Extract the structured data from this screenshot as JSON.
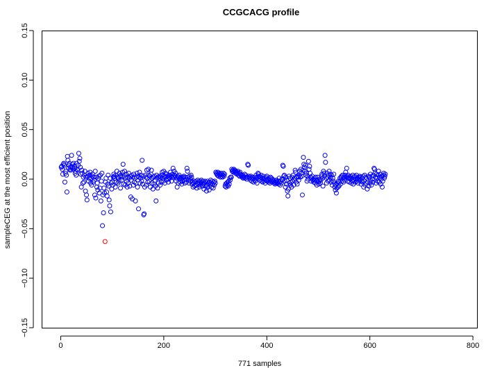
{
  "chart_data": {
    "type": "scatter",
    "title": "CCGCACG profile",
    "xlabel": "771 samples",
    "ylabel": "sampleCEG at the most efficient position",
    "xlim": [
      -37,
      808
    ],
    "ylim": [
      -0.15,
      0.15
    ],
    "x_ticks": [
      0,
      200,
      400,
      600,
      800
    ],
    "x_tick_labels": [
      "0",
      "200",
      "400",
      "600",
      "800"
    ],
    "y_ticks": [
      -0.15,
      -0.1,
      -0.05,
      0.0,
      0.05,
      0.1,
      0.15
    ],
    "y_tick_labels": [
      "−0.15",
      "−0.10",
      "−0.05",
      "0.00",
      "0.05",
      "0.10",
      "0.15"
    ],
    "marker": "open-circle",
    "colors": {
      "normal": "#0000ff",
      "highlight": "#ff0000"
    },
    "series": [
      {
        "values": [
          0.012,
          0.013,
          0.01,
          0.005,
          0.015,
          0.016,
          0.014,
          -0.003,
          0.006,
          0.008,
          0.004,
          -0.013,
          0.023,
          0.019,
          0.011,
          0.014,
          0.016,
          0.01,
          0.009,
          0.012,
          0.024,
          0.015,
          0.012,
          0.01,
          0.016,
          0.013,
          0.011,
          0.006,
          0.008,
          0.004,
          0.016,
          0.01,
          0.009,
          0.014,
          0.026,
          0.018,
          0.021,
          0.012,
          0.005,
          -0.008,
          0.009,
          0.006,
          -0.004,
          0.002,
          -0.003,
          0.004,
          0.008,
          -0.012,
          0.002,
          -0.016,
          -0.021,
          0.003,
          0.006,
          -0.002,
          0.001,
          0.004,
          0.007,
          -0.004,
          0.001,
          -0.006,
          0.003,
          0.005,
          -0.003,
          0.002,
          -0.001,
          -0.016,
          0.008,
          -0.019,
          0.002,
          -0.008,
          -0.004,
          -0.011,
          0.001,
          0.003,
          -0.014,
          -0.009,
          0.004,
          -0.022,
          -0.002,
          0.006,
          -0.047,
          -0.016,
          -0.034,
          -0.009,
          -0.014,
          -0.063,
          -0.003,
          0.001,
          -0.013,
          -0.017,
          -0.005,
          0.004,
          -0.007,
          -0.021,
          -0.027,
          0.001,
          -0.033,
          -0.004,
          -0.01,
          -0.003,
          -0.006,
          0.002,
          0.005,
          0.003,
          0.001,
          -0.008,
          0.004,
          -0.003,
          0.008,
          0.002,
          -0.004,
          0.001,
          -0.002,
          0.006,
          0.003,
          -0.009,
          0.004,
          -0.001,
          0.002,
          0.007,
          0.015,
          -0.005,
          0.003,
          0.008,
          -0.006,
          0.001,
          0.005,
          -0.002,
          -0.008,
          0.002,
          -0.004,
          0.006,
          0.001,
          -0.007,
          0.003,
          -0.018,
          -0.001,
          0.004,
          -0.02,
          0.002,
          -0.006,
          0.005,
          -0.003,
          0.001,
          -0.022,
          -0.004,
          0.002,
          0.006,
          -0.008,
          0.003,
          -0.03,
          0.002,
          0.007,
          -0.004,
          0.001,
          0.004,
          -0.002,
          0.019,
          -0.005,
          0.003,
          -0.036,
          -0.035,
          -0.008,
          0.004,
          0.002,
          -0.006,
          0.009,
          0.001,
          -0.003,
          0.01,
          0.004,
          -0.002,
          0.003,
          -0.008,
          0.005,
          0.009,
          -0.004,
          0.001,
          -0.01,
          0.002,
          -0.005,
          0.003,
          -0.001,
          -0.007,
          -0.022,
          0.004,
          0.001,
          -0.009,
          0.002,
          -0.004,
          0.003,
          0.001,
          -0.006,
          0.002,
          -0.003,
          0.004,
          0.007,
          0.001,
          -0.002,
          0.008,
          0.003,
          -0.004,
          0.006,
          0.002,
          -0.001,
          0.005,
          0.003,
          0.0,
          -0.003,
          0.002,
          0.004,
          0.001,
          0.007,
          0.003,
          -0.002,
          0.002,
          0.005,
          0.011,
          0.002,
          0.008,
          0.004,
          0.003,
          0.006,
          -0.002,
          0.001,
          -0.008,
          0.003,
          -0.004,
          0.002,
          0.004,
          0.001,
          -0.003,
          0.002,
          0.0,
          -0.005,
          -0.002,
          0.001,
          0.002,
          0.003,
          -0.001,
          -0.004,
          0.002,
          0.0,
          -0.003,
          0.011,
          0.008,
          0.002,
          -0.001,
          -0.004,
          0.003,
          0.001,
          -0.002,
          0.004,
          0.002,
          -0.005,
          -0.003,
          -0.008,
          -0.004,
          -0.002,
          -0.007,
          -0.003,
          -0.006,
          -0.002,
          -0.009,
          -0.004,
          -0.001,
          -0.005,
          -0.003,
          -0.008,
          -0.002,
          -0.006,
          -0.004,
          -0.001,
          -0.003,
          -0.007,
          -0.002,
          -0.005,
          -0.01,
          -0.004,
          -0.002,
          -0.007,
          -0.003,
          -0.012,
          -0.006,
          -0.002,
          -0.008,
          -0.004,
          -0.011,
          -0.003,
          -0.006,
          -0.001,
          -0.004,
          -0.008,
          -0.002,
          -0.005,
          -0.009,
          -0.003,
          -0.006,
          -0.002,
          -0.004,
          0.007,
          0.006,
          0.005,
          0.004,
          0.007,
          0.003,
          0.006,
          0.005,
          0.004,
          0.002,
          0.006,
          0.003,
          0.005,
          0.002,
          0.004,
          0.006,
          0.003,
          0.005,
          -0.007,
          -0.005,
          -0.008,
          -0.004,
          -0.006,
          -0.003,
          -0.007,
          -0.002,
          -0.005,
          0.001,
          -0.001,
          0.002,
          0.002,
          0.01,
          0.008,
          0.009,
          0.007,
          0.01,
          0.008,
          0.009,
          0.006,
          0.008,
          0.007,
          0.005,
          0.006,
          0.008,
          0.004,
          0.006,
          0.003,
          0.007,
          0.005,
          0.004,
          0.003,
          0.002,
          0.004,
          0.001,
          0.003,
          0.002,
          0.005,
          0.001,
          0.004,
          0.002,
          0.0,
          0.002,
          0.015,
          0.014,
          0.003,
          0.001,
          0.002,
          -0.001,
          0.003,
          0.001,
          -0.002,
          0.002,
          0.0,
          -0.003,
          0.001,
          -0.001,
          0.002,
          -0.002,
          0.004,
          0.001,
          -0.004,
          0.002,
          0.006,
          0.005,
          0.003,
          0.001,
          -0.001,
          0.002,
          0.004,
          -0.002,
          0.001,
          -0.003,
          0.003,
          0.0,
          -0.002,
          0.001,
          -0.004,
          0.002,
          -0.001,
          0.003,
          -0.002,
          0.0,
          -0.003,
          0.001,
          -0.001,
          -0.004,
          0.002,
          -0.002,
          0.001,
          -0.003,
          0.0,
          -0.002,
          -0.001,
          -0.004,
          -0.003,
          -0.005,
          -0.002,
          -0.004,
          -0.001,
          -0.003,
          -0.004,
          -0.002,
          -0.005,
          0.001,
          -0.003,
          -0.006,
          -0.002,
          -0.004,
          0.0,
          -0.001,
          0.014,
          0.013,
          0.003,
          0.004,
          -0.002,
          -0.008,
          0.002,
          -0.005,
          -0.001,
          -0.012,
          -0.017,
          -0.01,
          0.003,
          -0.004,
          0.001,
          -0.006,
          -0.003,
          -0.008,
          0.002,
          -0.002,
          0.004,
          -0.006,
          -0.001,
          0.001,
          0.009,
          0.007,
          -0.003,
          0.002,
          -0.005,
          0.003,
          0.002,
          -0.001,
          0.004,
          0.008,
          0.002,
          0.01,
          0.006,
          0.003,
          -0.016,
          0.009,
          0.022,
          0.015,
          0.012,
          0.008,
          0.014,
          0.004,
          0.006,
          -0.002,
          0.003,
          0.0,
          0.018,
          0.01,
          0.013,
          0.006,
          0.002,
          -0.002,
          0.001,
          0.003,
          -0.001,
          0.0,
          -0.003,
          -0.001,
          0.001,
          -0.004,
          0.002,
          -0.002,
          -0.006,
          -0.001,
          0.002,
          -0.003,
          -0.005,
          -0.002,
          0.0,
          -0.004,
          -0.001,
          0.003,
          0.005,
          0.001,
          -0.007,
          0.008,
          0.006,
          0.003,
          0.024,
          0.017,
          0.001,
          -0.004,
          0.006,
          0.002,
          -0.002,
          0.004,
          0.008,
          -0.001,
          0.005,
          0.002,
          -0.003,
          0.004,
          -0.006,
          0.001,
          -0.002,
          0.005,
          -0.004,
          -0.008,
          -0.011,
          -0.006,
          -0.014,
          -0.009,
          -0.004,
          -0.008,
          -0.002,
          -0.007,
          -0.003,
          0.001,
          -0.005,
          0.002,
          0.003,
          -0.002,
          0.004,
          0.001,
          -0.003,
          0.002,
          -0.001,
          0.004,
          0.007,
          0.002,
          0.011,
          0.003,
          -0.002,
          0.004,
          0.001,
          -0.003,
          0.002,
          0.0,
          0.003,
          -0.004,
          0.001,
          -0.002,
          0.004,
          -0.005,
          -0.001,
          0.002,
          0.003,
          -0.003,
          0.0,
          0.004,
          -0.002,
          0.001,
          -0.004,
          0.002,
          0.0,
          0.003,
          -0.001,
          0.002,
          -0.005,
          -0.002,
          0.001,
          -0.003,
          0.003,
          -0.008,
          -0.002,
          0.004,
          -0.006,
          0.002,
          -0.004,
          0.001,
          -0.01,
          -0.003,
          0.003,
          -0.007,
          0.002,
          -0.004,
          0.005,
          -0.002,
          -0.006,
          0.003,
          0.0,
          -0.003,
          0.004,
          0.011,
          0.01,
          0.006,
          0.002,
          -0.004,
          0.005,
          0.001,
          -0.002,
          0.004,
          0.008,
          -0.003,
          0.002,
          0.005,
          -0.005,
          0.0,
          0.003,
          -0.008,
          -0.002,
          0.004,
          0.006,
          0.001,
          0.003,
          0.005
        ],
        "highlight_index": 85
      }
    ]
  }
}
